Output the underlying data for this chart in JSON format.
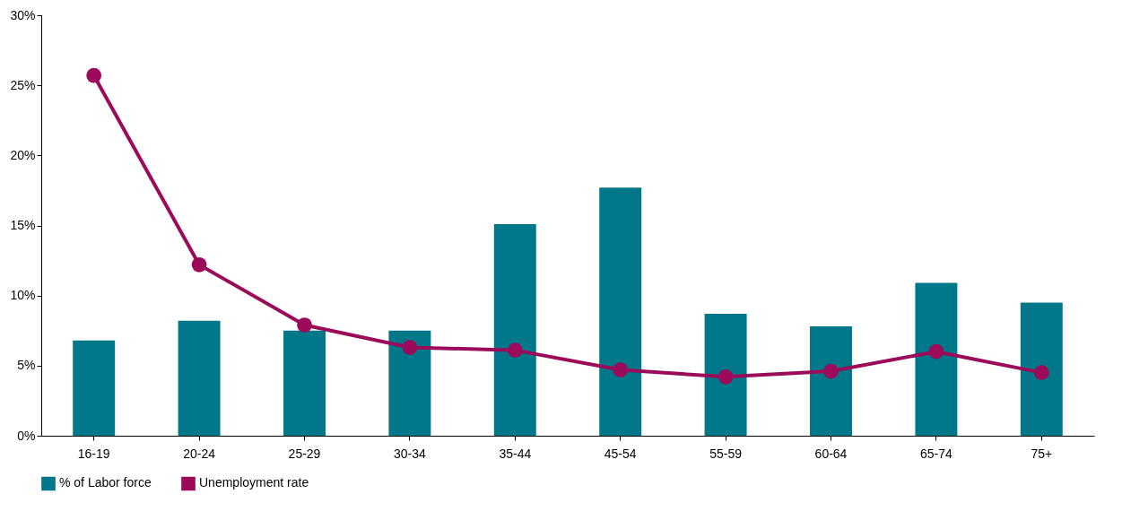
{
  "chart_data": {
    "type": "bar",
    "categories": [
      "16-19",
      "20-24",
      "25-29",
      "30-34",
      "35-44",
      "45-54",
      "55-59",
      "60-64",
      "65-74",
      "75+"
    ],
    "series": [
      {
        "name": "% of Labor force",
        "color": "#00788a",
        "values": [
          6.8,
          8.2,
          7.5,
          7.5,
          15.1,
          17.7,
          8.7,
          7.8,
          10.9,
          9.5
        ]
      },
      {
        "name": "Unemployment rate",
        "type": "line",
        "color": "#9b0b5a",
        "marker": "circle",
        "line_style": "solid",
        "values": [
          25.7,
          12.2,
          7.9,
          6.3,
          6.1,
          4.7,
          4.2,
          4.6,
          6.0,
          4.5
        ]
      }
    ],
    "ylim": [
      0,
      30
    ],
    "yticks": [
      {
        "value": 0,
        "label": "0%"
      },
      {
        "value": 5,
        "label": "5%"
      },
      {
        "value": 10,
        "label": "10%"
      },
      {
        "value": 15,
        "label": "15%"
      },
      {
        "value": 20,
        "label": "20%"
      },
      {
        "value": 25,
        "label": "25%"
      },
      {
        "value": 30,
        "label": "30%"
      }
    ],
    "grid": false,
    "legend": "bottom"
  }
}
